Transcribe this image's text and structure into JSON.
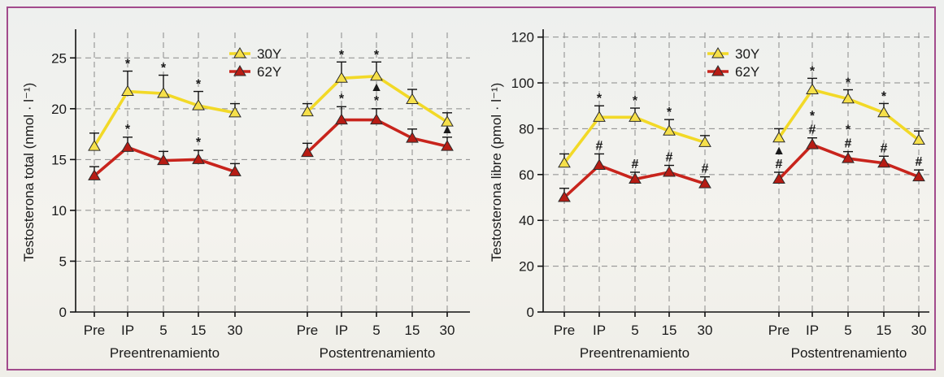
{
  "colors": {
    "30Y": "#f2d927",
    "62Y": "#c8241c",
    "30Y_marker": "#f6e04a",
    "62Y_marker": "#b71c14"
  },
  "chart_data": [
    {
      "type": "line",
      "ylabel": "Testosterona total (nmol · l⁻¹)",
      "ylim": [
        0,
        27.5
      ],
      "yticks": [
        "0",
        "5",
        "10",
        "15",
        "20",
        "25"
      ],
      "grid": true,
      "legend_position": "top-center",
      "groups": [
        {
          "label": "Preentrenamiento",
          "categories": [
            "Pre",
            "IP",
            "5",
            "15",
            "30"
          ]
        },
        {
          "label": "Postentrenamiento",
          "categories": [
            "Pre",
            "IP",
            "5",
            "15",
            "30"
          ]
        }
      ],
      "series": [
        {
          "name": "30Y",
          "color_key": "30Y",
          "values": [
            16.3,
            21.7,
            21.5,
            20.3,
            19.6,
            19.7,
            23.0,
            23.2,
            20.9,
            18.7
          ],
          "errors": [
            1.3,
            2.0,
            1.8,
            1.4,
            0.9,
            0.8,
            1.6,
            1.4,
            1.0,
            0.9
          ]
        },
        {
          "name": "62Y",
          "color_key": "62Y",
          "values": [
            13.4,
            16.2,
            14.9,
            15.0,
            13.8,
            15.7,
            18.9,
            18.9,
            17.1,
            16.3
          ],
          "errors": [
            0.9,
            1.0,
            0.9,
            0.9,
            0.8,
            0.9,
            1.3,
            1.1,
            0.9,
            0.9
          ]
        }
      ],
      "annotations": [
        {
          "text": "*",
          "series": "30Y",
          "index": 1
        },
        {
          "text": "*",
          "series": "30Y",
          "index": 2
        },
        {
          "text": "*",
          "series": "30Y",
          "index": 3
        },
        {
          "text": "*",
          "series": "30Y",
          "index": 6
        },
        {
          "text": "*",
          "series": "30Y",
          "index": 7
        },
        {
          "text": "*",
          "series": "62Y",
          "index": 1
        },
        {
          "text": "*",
          "series": "62Y",
          "index": 3
        },
        {
          "text": "*",
          "series": "62Y",
          "index": 6
        },
        {
          "text": "*",
          "series": "62Y",
          "index": 7
        },
        {
          "text": "▲",
          "series": "62Y",
          "index": 7
        },
        {
          "text": "▲",
          "series": "62Y",
          "index": 9
        }
      ]
    },
    {
      "type": "line",
      "ylabel": "Testosterona libre (pmol · l⁻¹)",
      "ylim": [
        0,
        122
      ],
      "yticks": [
        "0",
        "20",
        "40",
        "60",
        "80",
        "100",
        "120"
      ],
      "grid": true,
      "legend_position": "top-center",
      "groups": [
        {
          "label": "Preentrenamiento",
          "categories": [
            "Pre",
            "IP",
            "5",
            "15",
            "30"
          ]
        },
        {
          "label": "Postentrenamiento",
          "categories": [
            "Pre",
            "IP",
            "5",
            "15",
            "30"
          ]
        }
      ],
      "series": [
        {
          "name": "30Y",
          "color_key": "30Y",
          "values": [
            65,
            85,
            85,
            79,
            74,
            76,
            97,
            93,
            87,
            75
          ],
          "errors": [
            4,
            5,
            4,
            5,
            3,
            4,
            5,
            4,
            4,
            4
          ]
        },
        {
          "name": "62Y",
          "color_key": "62Y",
          "values": [
            50,
            64,
            58,
            61,
            56,
            58,
            73,
            67,
            65,
            59
          ],
          "errors": [
            4,
            5,
            3,
            3,
            3,
            3,
            3,
            3,
            3,
            3
          ]
        }
      ],
      "annotations": [
        {
          "text": "*",
          "series": "30Y",
          "index": 1
        },
        {
          "text": "*",
          "series": "30Y",
          "index": 2
        },
        {
          "text": "*",
          "series": "30Y",
          "index": 3
        },
        {
          "text": "*",
          "series": "30Y",
          "index": 6
        },
        {
          "text": "*",
          "series": "30Y",
          "index": 7
        },
        {
          "text": "*",
          "series": "30Y",
          "index": 8
        },
        {
          "text": "#",
          "series": "62Y",
          "index": 1
        },
        {
          "text": "#",
          "series": "62Y",
          "index": 2
        },
        {
          "text": "#",
          "series": "62Y",
          "index": 3
        },
        {
          "text": "#",
          "series": "62Y",
          "index": 4
        },
        {
          "text": "#",
          "series": "62Y",
          "index": 5
        },
        {
          "text": "▲",
          "series": "62Y",
          "index": 5
        },
        {
          "text": "#",
          "series": "62Y",
          "index": 6
        },
        {
          "text": "*",
          "series": "62Y",
          "index": 6
        },
        {
          "text": "#",
          "series": "62Y",
          "index": 7
        },
        {
          "text": "*",
          "series": "62Y",
          "index": 7
        },
        {
          "text": "#",
          "series": "62Y",
          "index": 8
        },
        {
          "text": "#",
          "series": "62Y",
          "index": 9
        }
      ]
    }
  ]
}
